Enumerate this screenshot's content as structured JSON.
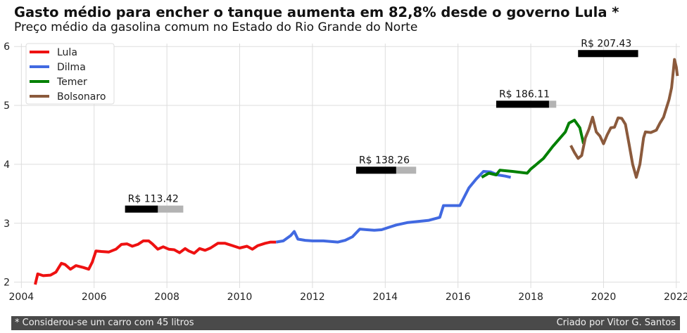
{
  "title": "Gasto médio para encher o tanque aumenta em 82,8% desde o governo Lula *",
  "subtitle": "Preço médio da gasolina comum no Estado do Rio Grande do Norte",
  "footer": {
    "left": "* Considerou-se um carro com 45 litros",
    "right": "Criado por Vitor G. Santos"
  },
  "chart_data": {
    "type": "line",
    "xlim": [
      2003.8,
      2022.1
    ],
    "ylim": [
      1.9,
      6.05
    ],
    "xticks": [
      2004,
      2006,
      2008,
      2010,
      2012,
      2014,
      2016,
      2018,
      2020,
      2022
    ],
    "yticks": [
      2,
      3,
      4,
      5,
      6
    ],
    "grid": true,
    "legend_position": "top-left",
    "series": [
      {
        "name": "Lula",
        "color": "#ee1111",
        "points": [
          [
            2004.38,
            1.96
          ],
          [
            2004.45,
            2.14
          ],
          [
            2004.6,
            2.11
          ],
          [
            2004.8,
            2.12
          ],
          [
            2004.95,
            2.17
          ],
          [
            2005.1,
            2.32
          ],
          [
            2005.2,
            2.3
          ],
          [
            2005.35,
            2.22
          ],
          [
            2005.5,
            2.28
          ],
          [
            2005.7,
            2.25
          ],
          [
            2005.85,
            2.22
          ],
          [
            2005.95,
            2.34
          ],
          [
            2006.05,
            2.53
          ],
          [
            2006.2,
            2.52
          ],
          [
            2006.4,
            2.51
          ],
          [
            2006.6,
            2.56
          ],
          [
            2006.75,
            2.64
          ],
          [
            2006.9,
            2.65
          ],
          [
            2007.05,
            2.61
          ],
          [
            2007.2,
            2.64
          ],
          [
            2007.35,
            2.7
          ],
          [
            2007.5,
            2.7
          ],
          [
            2007.6,
            2.65
          ],
          [
            2007.75,
            2.56
          ],
          [
            2007.9,
            2.6
          ],
          [
            2008.05,
            2.56
          ],
          [
            2008.2,
            2.55
          ],
          [
            2008.35,
            2.5
          ],
          [
            2008.5,
            2.57
          ],
          [
            2008.6,
            2.53
          ],
          [
            2008.75,
            2.49
          ],
          [
            2008.9,
            2.57
          ],
          [
            2009.05,
            2.54
          ],
          [
            2009.2,
            2.58
          ],
          [
            2009.4,
            2.66
          ],
          [
            2009.6,
            2.66
          ],
          [
            2009.8,
            2.62
          ],
          [
            2010.0,
            2.58
          ],
          [
            2010.2,
            2.61
          ],
          [
            2010.35,
            2.56
          ],
          [
            2010.5,
            2.62
          ],
          [
            2010.7,
            2.66
          ],
          [
            2010.85,
            2.68
          ],
          [
            2011.0,
            2.68
          ]
        ]
      },
      {
        "name": "Dilma",
        "color": "#4169e1",
        "points": [
          [
            2011.0,
            2.68
          ],
          [
            2011.2,
            2.7
          ],
          [
            2011.4,
            2.79
          ],
          [
            2011.5,
            2.86
          ],
          [
            2011.6,
            2.73
          ],
          [
            2011.8,
            2.71
          ],
          [
            2012.0,
            2.7
          ],
          [
            2012.3,
            2.7
          ],
          [
            2012.5,
            2.69
          ],
          [
            2012.7,
            2.68
          ],
          [
            2012.9,
            2.71
          ],
          [
            2013.1,
            2.77
          ],
          [
            2013.3,
            2.9
          ],
          [
            2013.5,
            2.89
          ],
          [
            2013.7,
            2.88
          ],
          [
            2013.9,
            2.89
          ],
          [
            2014.1,
            2.93
          ],
          [
            2014.3,
            2.97
          ],
          [
            2014.6,
            3.01
          ],
          [
            2014.9,
            3.03
          ],
          [
            2015.2,
            3.05
          ],
          [
            2015.5,
            3.1
          ],
          [
            2015.6,
            3.3
          ],
          [
            2015.8,
            3.3
          ],
          [
            2016.05,
            3.3
          ],
          [
            2016.3,
            3.6
          ],
          [
            2016.5,
            3.75
          ],
          [
            2016.7,
            3.88
          ],
          [
            2016.9,
            3.87
          ],
          [
            2017.1,
            3.82
          ],
          [
            2017.3,
            3.8
          ],
          [
            2017.45,
            3.78
          ]
        ]
      },
      {
        "name": "Temer",
        "color": "#008000",
        "points": [
          [
            2016.65,
            3.78
          ],
          [
            2016.85,
            3.85
          ],
          [
            2017.05,
            3.82
          ],
          [
            2017.15,
            3.9
          ],
          [
            2017.5,
            3.88
          ],
          [
            2017.9,
            3.85
          ],
          [
            2018.0,
            3.92
          ],
          [
            2018.1,
            3.97
          ],
          [
            2018.35,
            4.1
          ],
          [
            2018.6,
            4.3
          ],
          [
            2018.95,
            4.55
          ],
          [
            2019.05,
            4.7
          ],
          [
            2019.2,
            4.75
          ],
          [
            2019.35,
            4.62
          ],
          [
            2019.45,
            4.35
          ]
        ]
      },
      {
        "name": "Bolsonaro",
        "color": "#8b5a3c",
        "points": [
          [
            2019.1,
            4.32
          ],
          [
            2019.2,
            4.2
          ],
          [
            2019.3,
            4.1
          ],
          [
            2019.4,
            4.15
          ],
          [
            2019.5,
            4.45
          ],
          [
            2019.6,
            4.6
          ],
          [
            2019.7,
            4.8
          ],
          [
            2019.8,
            4.55
          ],
          [
            2019.9,
            4.48
          ],
          [
            2020.0,
            4.35
          ],
          [
            2020.1,
            4.5
          ],
          [
            2020.2,
            4.62
          ],
          [
            2020.3,
            4.63
          ],
          [
            2020.4,
            4.79
          ],
          [
            2020.5,
            4.78
          ],
          [
            2020.6,
            4.68
          ],
          [
            2020.7,
            4.35
          ],
          [
            2020.8,
            4.0
          ],
          [
            2020.9,
            3.78
          ],
          [
            2021.0,
            4.0
          ],
          [
            2021.1,
            4.45
          ],
          [
            2021.15,
            4.55
          ],
          [
            2021.3,
            4.54
          ],
          [
            2021.45,
            4.58
          ],
          [
            2021.55,
            4.7
          ],
          [
            2021.65,
            4.8
          ],
          [
            2021.7,
            4.9
          ],
          [
            2021.8,
            5.1
          ],
          [
            2021.87,
            5.3
          ],
          [
            2021.92,
            5.6
          ],
          [
            2021.95,
            5.78
          ],
          [
            2022.0,
            5.65
          ],
          [
            2022.03,
            5.5
          ]
        ]
      }
    ],
    "annotations": [
      {
        "label": "R$ 113.42",
        "x_start": 2006.85,
        "fill_end": 2007.75,
        "bar_end": 2008.45,
        "y": 3.24
      },
      {
        "label": "R$ 138.26",
        "x_start": 2013.2,
        "fill_end": 2014.3,
        "bar_end": 2014.85,
        "y": 3.9
      },
      {
        "label": "R$ 186.11",
        "x_start": 2017.05,
        "fill_end": 2018.5,
        "bar_end": 2018.7,
        "y": 5.02
      },
      {
        "label": "R$ 207.43",
        "x_start": 2019.3,
        "fill_end": 2020.95,
        "bar_end": 2020.95,
        "y": 5.88
      }
    ]
  }
}
